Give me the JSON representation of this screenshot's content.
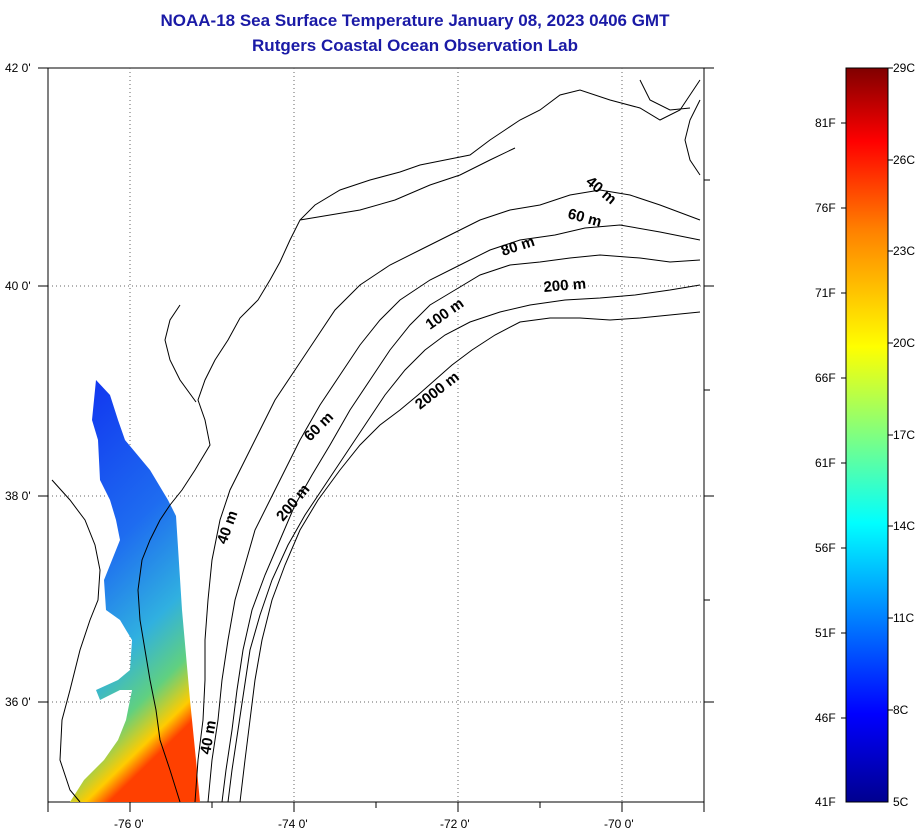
{
  "title": "NOAA-18 Sea Surface Temperature January 08, 2023 0406 GMT",
  "subtitle": "Rutgers Coastal Ocean Observation Lab",
  "map": {
    "lat_labels": [
      "42 0'",
      "40 0'",
      "38 0'",
      "36 0'"
    ],
    "lon_labels": [
      "-76 0'",
      "-74 0'",
      "-72 0'",
      "-70 0'"
    ],
    "contour_labels": [
      "40 m",
      "60 m",
      "80 m",
      "200 m",
      "100 m",
      "2000 m",
      "60 m",
      "40 m",
      "200 m",
      "40 m"
    ]
  },
  "colorbar": {
    "celsius": [
      "29C",
      "26C",
      "23C",
      "20C",
      "17C",
      "14C",
      "11C",
      "8C",
      "5C"
    ],
    "fahrenheit": [
      "81F",
      "76F",
      "71F",
      "66F",
      "61F",
      "56F",
      "51F",
      "46F",
      "41F"
    ],
    "colors": [
      "#00008f",
      "#0000ff",
      "#0080ff",
      "#00ffff",
      "#80ff80",
      "#ffff00",
      "#ff8000",
      "#ff0000",
      "#800000"
    ]
  }
}
